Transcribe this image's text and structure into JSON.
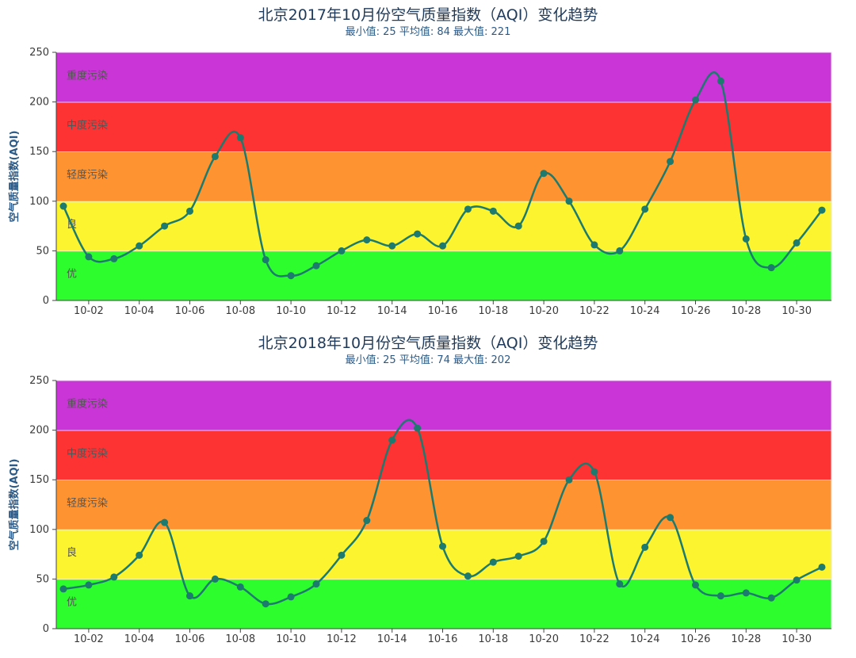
{
  "chart_data": [
    {
      "type": "line",
      "title": "北京2017年10月份空气质量指数（AQI）变化趋势",
      "subtitle": "最小值: 25 平均值: 84 最大值: 221",
      "ylabel": "空气质量指数(AQI)",
      "ylim": [
        0,
        250
      ],
      "yticks": [
        0,
        50,
        100,
        150,
        200,
        250
      ],
      "x": [
        "10-01",
        "10-02",
        "10-03",
        "10-04",
        "10-05",
        "10-06",
        "10-07",
        "10-08",
        "10-09",
        "10-10",
        "10-11",
        "10-12",
        "10-13",
        "10-14",
        "10-15",
        "10-16",
        "10-17",
        "10-18",
        "10-19",
        "10-20",
        "10-21",
        "10-22",
        "10-23",
        "10-24",
        "10-25",
        "10-26",
        "10-27",
        "10-28",
        "10-29",
        "10-30",
        "10-31"
      ],
      "xtick_labels": [
        "10-02",
        "10-04",
        "10-06",
        "10-08",
        "10-10",
        "10-12",
        "10-14",
        "10-16",
        "10-18",
        "10-20",
        "10-22",
        "10-24",
        "10-26",
        "10-28",
        "10-30"
      ],
      "values": [
        95,
        44,
        42,
        55,
        75,
        90,
        145,
        164,
        41,
        25,
        35,
        50,
        61,
        55,
        67,
        55,
        92,
        90,
        75,
        128,
        100,
        56,
        50,
        92,
        140,
        202,
        221,
        62,
        33,
        58,
        91
      ],
      "bands": [
        {
          "from": 0,
          "to": 50,
          "label": "优",
          "color": "#2dfc2d"
        },
        {
          "from": 50,
          "to": 100,
          "label": "良",
          "color": "#fbf42e"
        },
        {
          "from": 100,
          "to": 150,
          "label": "轻度污染",
          "color": "#fd9331"
        },
        {
          "from": 150,
          "to": 200,
          "label": "中度污染",
          "color": "#fd3333"
        },
        {
          "from": 200,
          "to": 250,
          "label": "重度污染",
          "color": "#c935d7"
        }
      ],
      "line_color": "#1d7a6e",
      "grid": false
    },
    {
      "type": "line",
      "title": "北京2018年10月份空气质量指数（AQI）变化趋势",
      "subtitle": "最小值: 25 平均值: 74 最大值: 202",
      "ylabel": "空气质量指数(AQI)",
      "ylim": [
        0,
        250
      ],
      "yticks": [
        0,
        50,
        100,
        150,
        200,
        250
      ],
      "x": [
        "10-01",
        "10-02",
        "10-03",
        "10-04",
        "10-05",
        "10-06",
        "10-07",
        "10-08",
        "10-09",
        "10-10",
        "10-11",
        "10-12",
        "10-13",
        "10-14",
        "10-15",
        "10-16",
        "10-17",
        "10-18",
        "10-19",
        "10-20",
        "10-21",
        "10-22",
        "10-23",
        "10-24",
        "10-25",
        "10-26",
        "10-27",
        "10-28",
        "10-29",
        "10-30",
        "10-31"
      ],
      "xtick_labels": [
        "10-02",
        "10-04",
        "10-06",
        "10-08",
        "10-10",
        "10-12",
        "10-14",
        "10-16",
        "10-18",
        "10-20",
        "10-22",
        "10-24",
        "10-26",
        "10-28",
        "10-30"
      ],
      "values": [
        40,
        44,
        52,
        74,
        107,
        33,
        50,
        42,
        25,
        32,
        45,
        74,
        109,
        190,
        202,
        83,
        53,
        67,
        73,
        88,
        150,
        158,
        45,
        82,
        112,
        44,
        33,
        36,
        31,
        49,
        62
      ],
      "bands": [
        {
          "from": 0,
          "to": 50,
          "label": "优",
          "color": "#2dfc2d"
        },
        {
          "from": 50,
          "to": 100,
          "label": "良",
          "color": "#fbf42e"
        },
        {
          "from": 100,
          "to": 150,
          "label": "轻度污染",
          "color": "#fd9331"
        },
        {
          "from": 150,
          "to": 200,
          "label": "中度污染",
          "color": "#fd3333"
        },
        {
          "from": 200,
          "to": 250,
          "label": "重度污染",
          "color": "#c935d7"
        }
      ],
      "line_color": "#1d7a6e",
      "grid": false
    }
  ]
}
